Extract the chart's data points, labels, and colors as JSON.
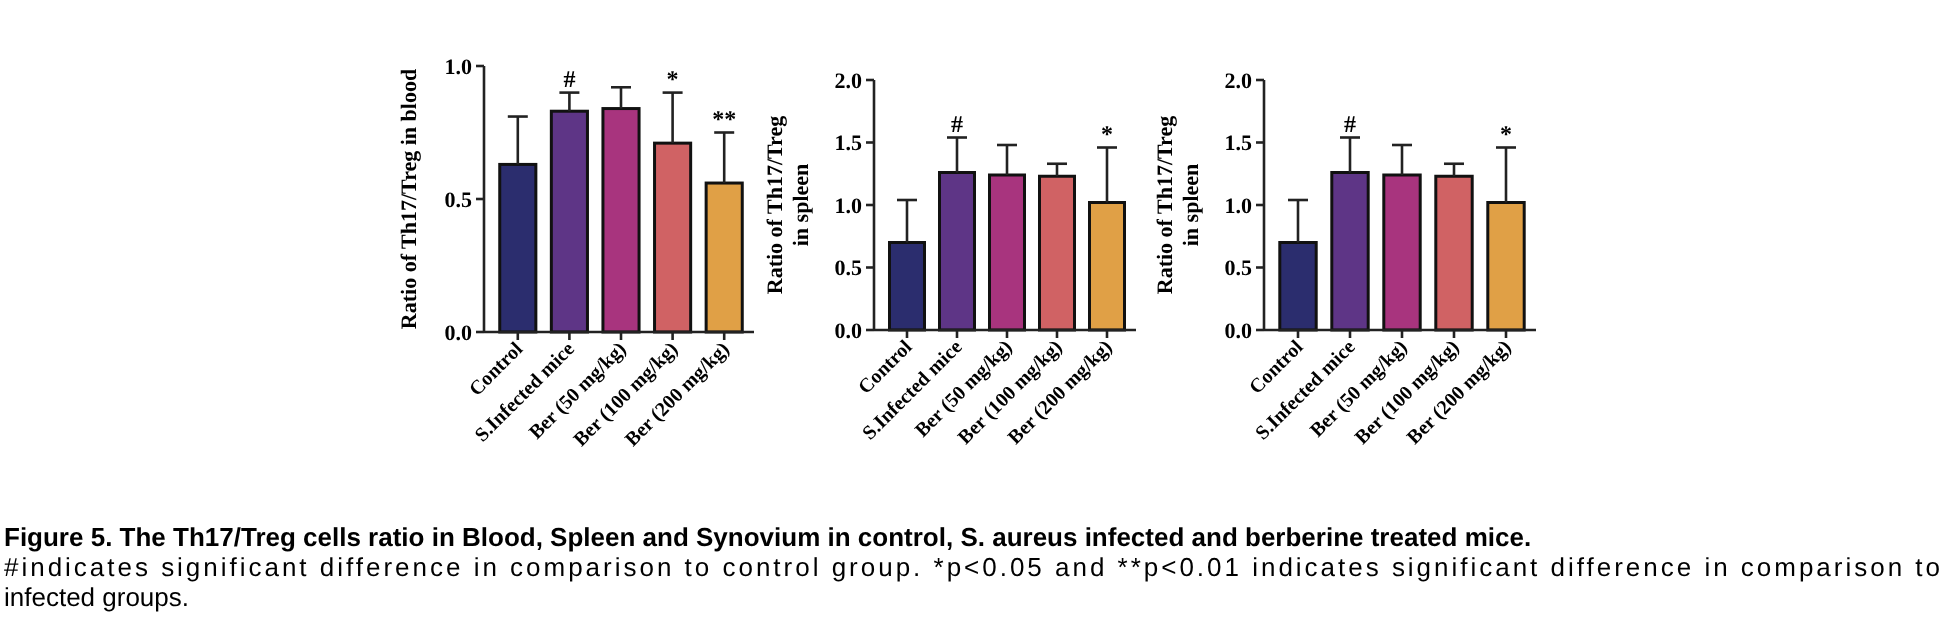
{
  "chart_data": [
    {
      "type": "bar",
      "ylabel": "Ratio of Th17/Treg  in blood",
      "categories": [
        "Control",
        "S.Infected mice",
        "Ber (50 mg/kg)",
        "Ber (100 mg/kg)",
        "Ber (200 mg/kg)"
      ],
      "values": [
        0.63,
        0.83,
        0.84,
        0.71,
        0.56
      ],
      "errors": [
        [
          0.63,
          0.81
        ],
        [
          0.83,
          0.9
        ],
        [
          0.84,
          0.92
        ],
        [
          0.71,
          0.9
        ],
        [
          0.56,
          0.75
        ]
      ],
      "colors": [
        "#2b2d6e",
        "#5e3586",
        "#a8347e",
        "#d06264",
        "#e0a046"
      ],
      "ylim": [
        0,
        1
      ],
      "yticks": [
        {
          "value": 0,
          "label": "0.0"
        },
        {
          "value": 0.5,
          "label": "0.5"
        },
        {
          "value": 1,
          "label": "1.0"
        }
      ],
      "annotations": [
        {
          "text": "#",
          "x": "S.Infected mice",
          "y": 0.9
        },
        {
          "text": "*",
          "x": "Ber (100 mg/kg)",
          "y": 0.9
        },
        {
          "text": "**",
          "x": "Ber (200 mg/kg)",
          "y": 0.75
        },
        "Figure 5. The Th17/Treg cells ratio in Blood, Spleen and Synovium in control, S. aureus infected and berberine treated mice.",
        "#indicates significant difference in comparison to control group. *p<0.05 and **p<0.01 indicates significant difference in comparison to",
        "infected groups."
      ]
    },
    {
      "type": "bar",
      "ylabel": "Ratio of Th17/Treg\nin spleen",
      "categories": [
        "Control",
        "S.Infected mice",
        "Ber (50 mg/kg)",
        "Ber (100 mg/kg)",
        "Ber (200 mg/kg)"
      ],
      "values": [
        0.7,
        1.26,
        1.24,
        1.23,
        1.02
      ],
      "errors": [
        [
          0.7,
          1.04
        ],
        [
          1.26,
          1.54
        ],
        [
          1.24,
          1.48
        ],
        [
          1.23,
          1.33
        ],
        [
          1.02,
          1.46
        ]
      ],
      "colors": [
        "#2b2d6e",
        "#5e3586",
        "#a8347e",
        "#d06264",
        "#e0a046"
      ],
      "ylim": [
        0,
        2
      ],
      "yticks": [
        {
          "value": 0,
          "label": "0.0"
        },
        {
          "value": 0.5,
          "label": "0.5"
        },
        {
          "value": 1,
          "label": "1.0"
        },
        {
          "value": 1.5,
          "label": "1.5"
        },
        {
          "value": 2,
          "label": "2.0"
        }
      ],
      "annotations": [
        {
          "text": "#",
          "x": "S.Infected mice",
          "y": 1.54
        },
        {
          "text": "*",
          "x": "Ber (200 mg/kg)",
          "y": 1.46
        }
      ]
    },
    {
      "type": "bar",
      "ylabel": "Ratio of Th17/Treg\nin spleen",
      "categories": [
        "Control",
        "S.Infected mice",
        "Ber (50 mg/kg)",
        "Ber (100 mg/kg)",
        "Ber (200 mg/kg)"
      ],
      "values": [
        0.7,
        1.26,
        1.24,
        1.23,
        1.02
      ],
      "errors": [
        [
          0.7,
          1.04
        ],
        [
          1.26,
          1.54
        ],
        [
          1.24,
          1.48
        ],
        [
          1.23,
          1.33
        ],
        [
          1.02,
          1.46
        ]
      ],
      "colors": [
        "#2b2d6e",
        "#5e3586",
        "#a8347e",
        "#d06264",
        "#e0a046"
      ],
      "ylim": [
        0,
        2
      ],
      "yticks": [
        {
          "value": 0,
          "label": "0.0"
        },
        {
          "value": 0.5,
          "label": "0.5"
        },
        {
          "value": 1,
          "label": "1.0"
        },
        {
          "value": 1.5,
          "label": "1.5"
        },
        {
          "value": 2,
          "label": "2.0"
        }
      ],
      "annotations": [
        {
          "text": "#",
          "x": "S.Infected mice",
          "y": 1.54
        },
        {
          "text": "*",
          "x": "Ber (200 mg/kg)",
          "y": 1.46
        }
      ]
    }
  ]
}
